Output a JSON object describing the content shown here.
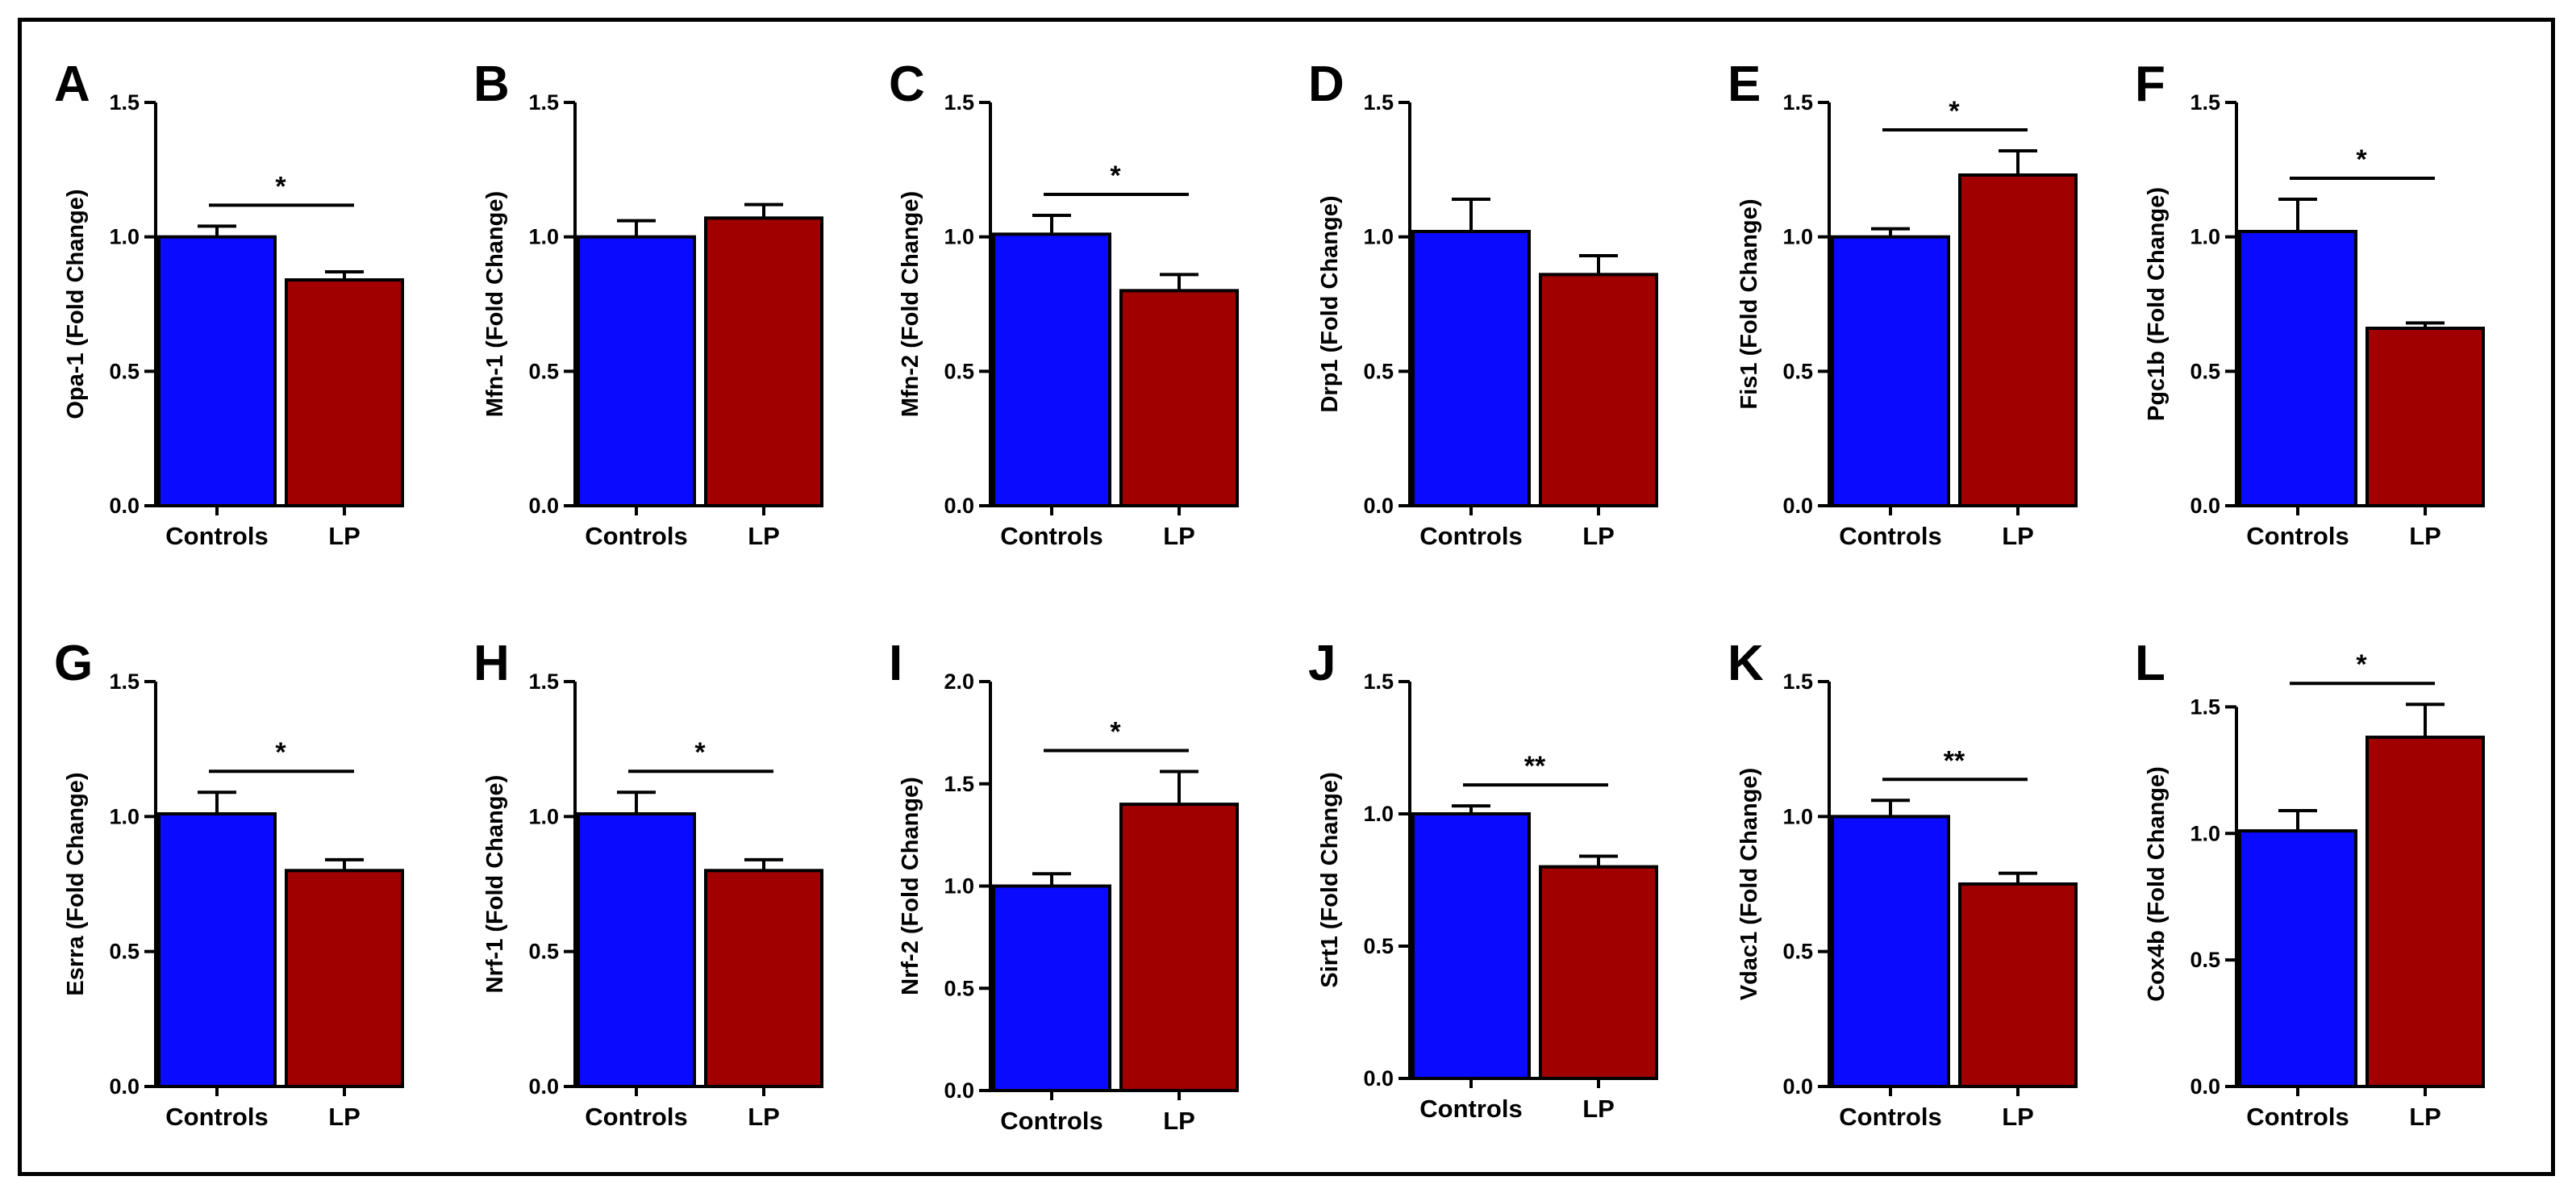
{
  "chart_data": [
    {
      "panel": "A",
      "type": "bar",
      "title": "",
      "ylabel": "Opa-1 (Fold Change)",
      "categories": [
        "Controls",
        "LP"
      ],
      "values": [
        1.0,
        0.84
      ],
      "errors": [
        0.04,
        0.03
      ],
      "ylim": [
        0,
        1.5
      ],
      "yticks": [
        "0.0",
        "0.5",
        "1.0",
        "1.5"
      ],
      "significance": "*"
    },
    {
      "panel": "B",
      "type": "bar",
      "title": "",
      "ylabel": "Mfn-1 (Fold Change)",
      "categories": [
        "Controls",
        "LP"
      ],
      "values": [
        1.0,
        1.07
      ],
      "errors": [
        0.06,
        0.05
      ],
      "ylim": [
        0,
        1.5
      ],
      "yticks": [
        "0.0",
        "0.5",
        "1.0",
        "1.5"
      ],
      "significance": ""
    },
    {
      "panel": "C",
      "type": "bar",
      "title": "",
      "ylabel": "Mfn-2 (Fold Change)",
      "categories": [
        "Controls",
        "LP"
      ],
      "values": [
        1.01,
        0.8
      ],
      "errors": [
        0.07,
        0.06
      ],
      "ylim": [
        0,
        1.5
      ],
      "yticks": [
        "0.0",
        "0.5",
        "1.0",
        "1.5"
      ],
      "significance": "*"
    },
    {
      "panel": "D",
      "type": "bar",
      "title": "",
      "ylabel": "Drp1 (Fold Change)",
      "categories": [
        "Controls",
        "LP"
      ],
      "values": [
        1.02,
        0.86
      ],
      "errors": [
        0.12,
        0.07
      ],
      "ylim": [
        0,
        1.5
      ],
      "yticks": [
        "0.0",
        "0.5",
        "1.0",
        "1.5"
      ],
      "significance": ""
    },
    {
      "panel": "E",
      "type": "bar",
      "title": "",
      "ylabel": "Fis1 (Fold Change)",
      "categories": [
        "Controls",
        "LP"
      ],
      "values": [
        1.0,
        1.23
      ],
      "errors": [
        0.03,
        0.09
      ],
      "ylim": [
        0,
        1.5
      ],
      "yticks": [
        "0.0",
        "0.5",
        "1.0",
        "1.5"
      ],
      "significance": "*"
    },
    {
      "panel": "F",
      "type": "bar",
      "title": "",
      "ylabel": "Pgc1b (Fold Change)",
      "categories": [
        "Controls",
        "LP"
      ],
      "values": [
        1.02,
        0.66
      ],
      "errors": [
        0.12,
        0.02
      ],
      "ylim": [
        0,
        1.5
      ],
      "yticks": [
        "0.0",
        "0.5",
        "1.0",
        "1.5"
      ],
      "significance": "*"
    },
    {
      "panel": "G",
      "type": "bar",
      "title": "",
      "ylabel": "Esrra (Fold Change)",
      "categories": [
        "Controls",
        "LP"
      ],
      "values": [
        1.01,
        0.8
      ],
      "errors": [
        0.08,
        0.04
      ],
      "ylim": [
        0,
        1.5
      ],
      "yticks": [
        "0.0",
        "0.5",
        "1.0",
        "1.5"
      ],
      "significance": "*"
    },
    {
      "panel": "H",
      "type": "bar",
      "title": "",
      "ylabel": "Nrf-1 (Fold Change)",
      "categories": [
        "Controls",
        "LP"
      ],
      "values": [
        1.01,
        0.8
      ],
      "errors": [
        0.08,
        0.04
      ],
      "ylim": [
        0,
        1.5
      ],
      "yticks": [
        "0.0",
        "0.5",
        "1.0",
        "1.5"
      ],
      "significance": "*"
    },
    {
      "panel": "I",
      "type": "bar",
      "title": "",
      "ylabel": "Nrf-2 (Fold Change)",
      "categories": [
        "Controls",
        "LP"
      ],
      "values": [
        1.0,
        1.4
      ],
      "errors": [
        0.06,
        0.16
      ],
      "ylim": [
        0,
        2.0
      ],
      "yticks": [
        "0.0",
        "0.5",
        "1.0",
        "1.5",
        "2.0"
      ],
      "significance": "*"
    },
    {
      "panel": "J",
      "type": "bar",
      "title": "",
      "ylabel": "Sirt1 (Fold Change)",
      "categories": [
        "Controls",
        "LP"
      ],
      "values": [
        1.0,
        0.8
      ],
      "errors": [
        0.03,
        0.04
      ],
      "ylim": [
        0,
        1.5
      ],
      "yticks": [
        "0.0",
        "0.5",
        "1.0",
        "1.5"
      ],
      "significance": "**"
    },
    {
      "panel": "K",
      "type": "bar",
      "title": "",
      "ylabel": "Vdac1 (Fold Change)",
      "categories": [
        "Controls",
        "LP"
      ],
      "values": [
        1.0,
        0.75
      ],
      "errors": [
        0.06,
        0.04
      ],
      "ylim": [
        0,
        1.5
      ],
      "yticks": [
        "0.0",
        "0.5",
        "1.0",
        "1.5"
      ],
      "significance": "**"
    },
    {
      "panel": "L",
      "type": "bar",
      "title": "",
      "ylabel": "Cox4b (Fold Change)",
      "categories": [
        "Controls",
        "LP"
      ],
      "values": [
        1.01,
        1.38
      ],
      "errors": [
        0.08,
        0.13
      ],
      "ylim": [
        0,
        1.6
      ],
      "yticks": [
        "0.0",
        "0.5",
        "1.0",
        "1.5"
      ],
      "significance": "*"
    }
  ],
  "colors": {
    "controls": "#0a0aff",
    "lp": "#a00000",
    "axis": "#000000"
  }
}
